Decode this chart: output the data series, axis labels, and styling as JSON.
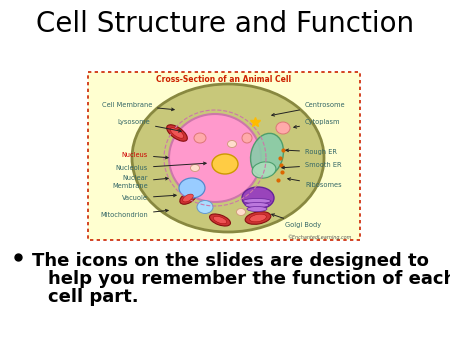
{
  "title": "Cell Structure and Function",
  "title_fontsize": 20,
  "background_color": "#ffffff",
  "bullet_text_line1": "The icons on the slides are designed to",
  "bullet_text_line2": "help you remember the function of each",
  "bullet_text_line3": "cell part.",
  "bullet_fontsize": 13,
  "diagram_box_color": "#ffffd0",
  "diagram_border_color": "#cc2200",
  "diagram_title": "Cross-Section of an Animal Cell",
  "diagram_title_color": "#cc2200",
  "cell_outer_facecolor": "#c8c87a",
  "cell_outer_edge": "#888840",
  "nucleus_color": "#ff99cc",
  "nucleolus_color": "#ffcc44",
  "nucleus_edge": "#cc77aa",
  "label_color_default": "#336666",
  "label_color_nucleus": "#cc0000",
  "label_color_nucleolus": "#336666",
  "copyright_text": "©EnchantedLearning.com"
}
